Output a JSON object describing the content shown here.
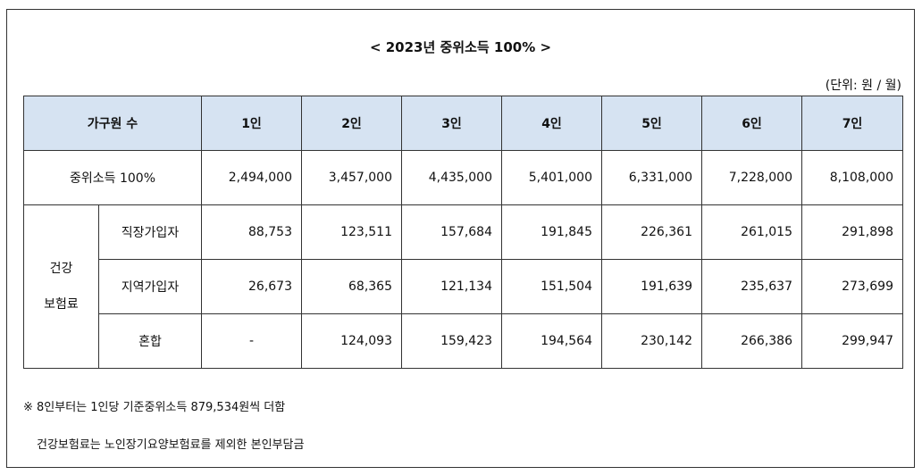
{
  "title": "< 2023년 중위소득 100% >",
  "unit": "(단위: 원 / 월)",
  "table": {
    "header": {
      "household_label": "가구원 수",
      "columns": [
        "1인",
        "2인",
        "3인",
        "4인",
        "5인",
        "6인",
        "7인"
      ]
    },
    "median_income": {
      "label": "중위소득 100%",
      "values": [
        "2,494,000",
        "3,457,000",
        "4,435,000",
        "5,401,000",
        "6,331,000",
        "7,228,000",
        "8,108,000"
      ]
    },
    "health_insurance": {
      "label_line1": "건강",
      "label_line2": "보험료",
      "rows": [
        {
          "label": "직장가입자",
          "values": [
            "88,753",
            "123,511",
            "157,684",
            "191,845",
            "226,361",
            "261,015",
            "291,898"
          ]
        },
        {
          "label": "지역가입자",
          "values": [
            "26,673",
            "68,365",
            "121,134",
            "151,504",
            "191,639",
            "235,637",
            "273,699"
          ]
        },
        {
          "label": "혼합",
          "values": [
            "-",
            "124,093",
            "159,423",
            "194,564",
            "230,142",
            "266,386",
            "299,947"
          ]
        }
      ]
    }
  },
  "notes": {
    "note1": "※ 8인부터는 1인당 기준중위소득 879,534원씩 더함",
    "note2": "건강보험료는 노인장기요양보험료를 제외한 본인부담금"
  }
}
